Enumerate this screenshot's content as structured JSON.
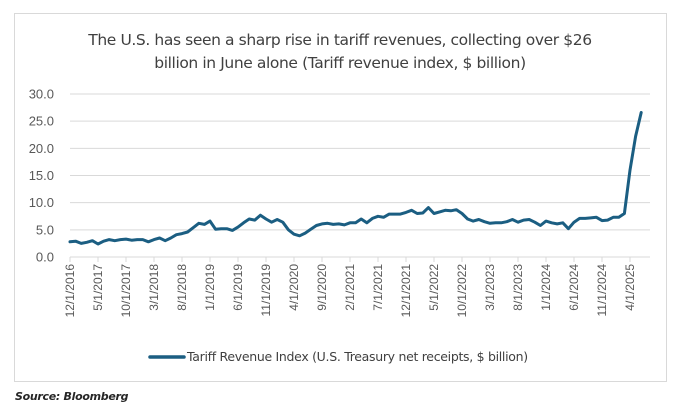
{
  "chart_data": {
    "type": "line",
    "title": "The U.S. has seen a sharp rise in tariff revenues, collecting over $26 billion in June alone (Tariff revenue index, $ billion)",
    "title_lines": [
      "The U.S. has seen a sharp rise in tariff revenues, collecting over $26",
      "billion in June alone (Tariff revenue index, $ billion)"
    ],
    "xlabel": "",
    "ylabel": "",
    "ylim": [
      0,
      30
    ],
    "yticks": [
      "0.0",
      "5.0",
      "10.0",
      "15.0",
      "20.0",
      "25.0",
      "30.0"
    ],
    "xtick_labels": [
      "12/1/2016",
      "5/1/2017",
      "10/1/2017",
      "3/1/2018",
      "8/1/2018",
      "1/1/2019",
      "6/1/2019",
      "11/1/2019",
      "4/1/2020",
      "9/1/2020",
      "2/1/2021",
      "7/1/2021",
      "12/1/2021",
      "5/1/2022",
      "10/1/2022",
      "3/1/2023",
      "8/1/2023",
      "1/1/2024",
      "6/1/2024",
      "11/1/2024",
      "4/1/2025"
    ],
    "x_start": "12/1/2016",
    "x_frequency": "monthly",
    "grid": true,
    "legend_position": "bottom",
    "series": [
      {
        "name": "Tariff Revenue Index (U.S. Treasury net receipts, $ billion)",
        "color": "#1b5e82",
        "values": [
          2.8,
          2.9,
          2.5,
          2.7,
          3.0,
          2.4,
          2.9,
          3.2,
          3.0,
          3.2,
          3.3,
          3.1,
          3.2,
          3.2,
          2.8,
          3.2,
          3.5,
          3.0,
          3.5,
          4.1,
          4.3,
          4.6,
          5.4,
          6.2,
          6.0,
          6.6,
          5.1,
          5.2,
          5.2,
          4.9,
          5.5,
          6.3,
          7.0,
          6.8,
          7.7,
          7.0,
          6.4,
          6.9,
          6.4,
          5.0,
          4.2,
          3.9,
          4.4,
          5.1,
          5.8,
          6.1,
          6.2,
          6.0,
          6.1,
          5.9,
          6.3,
          6.3,
          7.0,
          6.3,
          7.1,
          7.5,
          7.3,
          7.9,
          7.9,
          7.9,
          8.2,
          8.6,
          8.0,
          8.1,
          9.1,
          8.0,
          8.3,
          8.6,
          8.5,
          8.7,
          8.0,
          7.0,
          6.6,
          6.9,
          6.5,
          6.2,
          6.3,
          6.3,
          6.5,
          6.9,
          6.4,
          6.8,
          6.9,
          6.4,
          5.8,
          6.6,
          6.3,
          6.1,
          6.3,
          5.2,
          6.4,
          7.1,
          7.1,
          7.2,
          7.3,
          6.7,
          6.8,
          7.3,
          7.3,
          8.0,
          16.0,
          22.2,
          26.6
        ]
      }
    ]
  },
  "source": "Source: Bloomberg"
}
